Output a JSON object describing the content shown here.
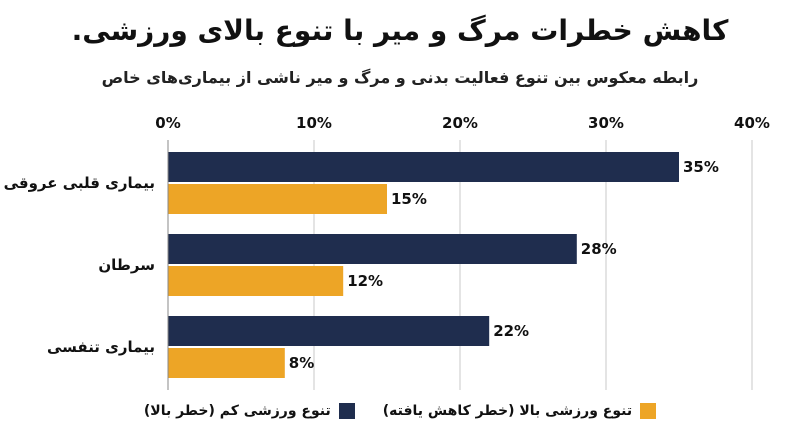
{
  "title": "کاهش خطرات مرگ و میر با تنوع بالای ورزشی.",
  "subtitle": "رابطه معکوس بین تنوع فعالیت بدنی و مرگ و میر ناشی از بیماری‌های خاص",
  "colors": {
    "high": "#1f2d4e",
    "low": "#eda526",
    "grid": "#c8c8c8"
  },
  "legend": {
    "high_label": "تنوع ورزشی کم (خطر بالا)",
    "low_label": "تنوع ورزشی بالا (خطر کاهش یافته)"
  },
  "chart_data": {
    "type": "bar",
    "orientation": "horizontal",
    "categories": [
      "بیماری قلبی عروقی",
      "سرطان",
      "بیماری تنفسی"
    ],
    "series": [
      {
        "name": "تنوع ورزشی کم (خطر بالا)",
        "values": [
          35,
          28,
          22
        ]
      },
      {
        "name": "تنوع ورزشی بالا (خطر کاهش یافته)",
        "values": [
          15,
          12,
          8
        ]
      }
    ],
    "xlim": [
      0,
      40
    ],
    "ticks": [
      "0%",
      "10%",
      "20%",
      "30%",
      "40%"
    ],
    "value_labels": [
      [
        "35%",
        "28%",
        "22%"
      ],
      [
        "15%",
        "12%",
        "8%"
      ]
    ],
    "grid": true,
    "legend_position": "bottom"
  }
}
